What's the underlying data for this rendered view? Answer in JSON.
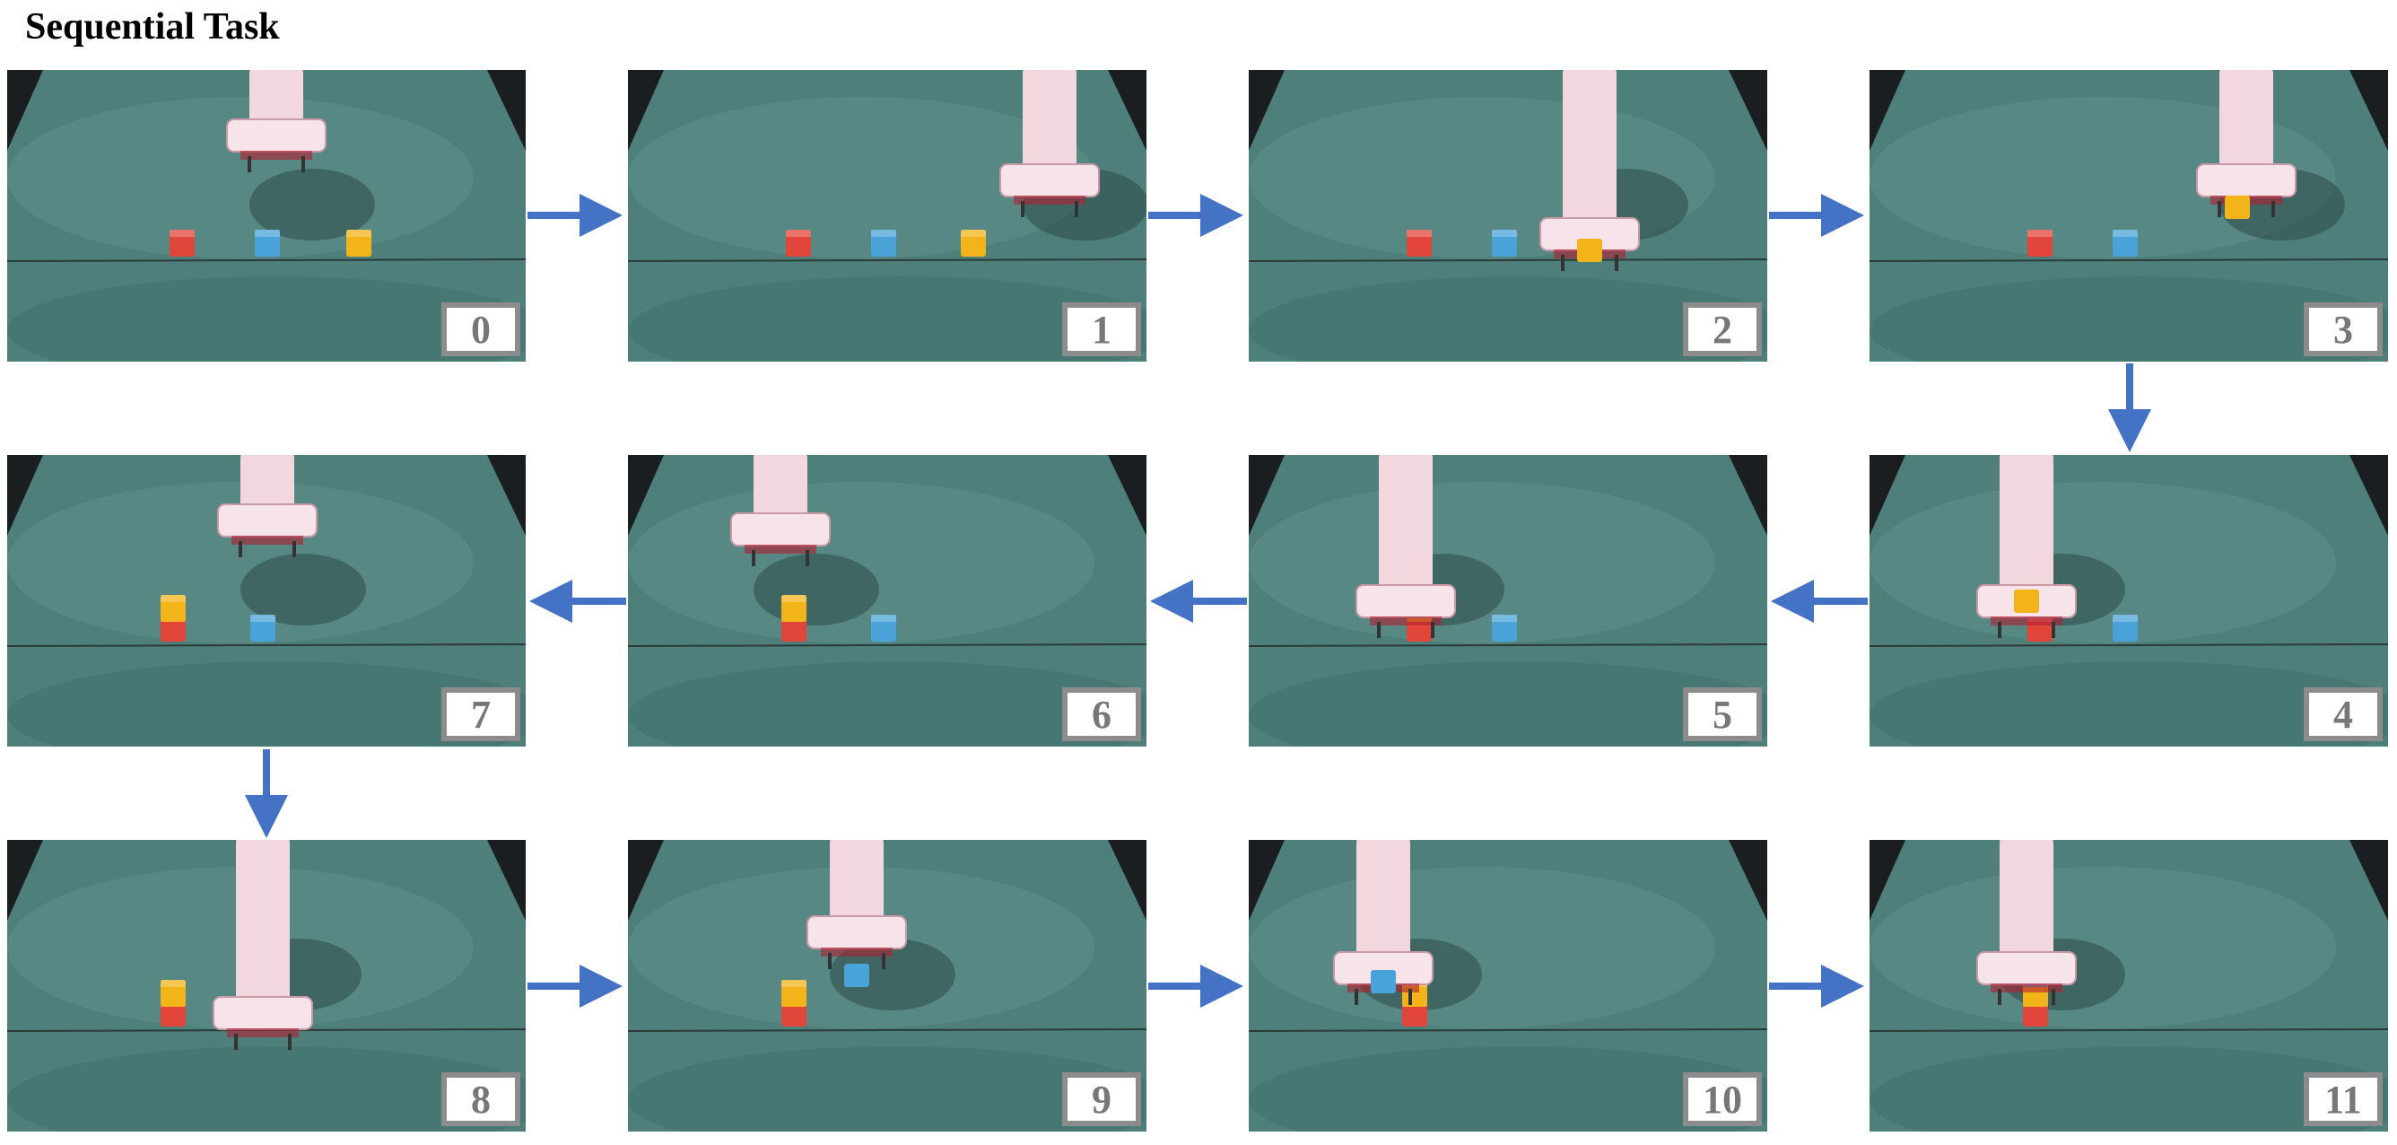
{
  "title": "Sequential Task",
  "frames": [
    {
      "label": "0"
    },
    {
      "label": "1"
    },
    {
      "label": "2"
    },
    {
      "label": "3"
    },
    {
      "label": "4"
    },
    {
      "label": "5"
    },
    {
      "label": "6"
    },
    {
      "label": "7"
    },
    {
      "label": "8"
    },
    {
      "label": "9"
    },
    {
      "label": "10"
    },
    {
      "label": "11"
    }
  ],
  "colors": {
    "arrow": "#4472c4",
    "label_border": "#8c8c8c",
    "label_text": "#777777",
    "table": "#4e7f7a",
    "cube_red": "#e2453a",
    "cube_blue": "#4aa3d8",
    "cube_yellow": "#f2b418"
  }
}
